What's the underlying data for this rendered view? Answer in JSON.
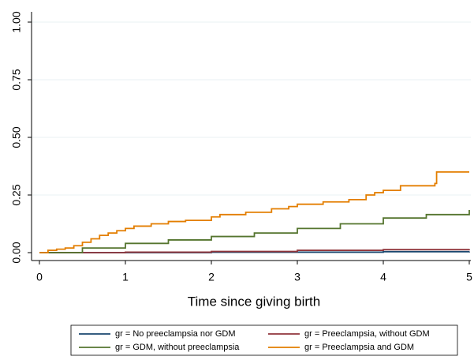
{
  "chart_data": {
    "type": "step",
    "xlabel": "Time since giving birth",
    "xlim": [
      0,
      5
    ],
    "xticks": [
      0,
      1,
      2,
      3,
      4,
      5
    ],
    "ylim": [
      0,
      1
    ],
    "yticks": [
      {
        "value": 0,
        "label": "0.00"
      },
      {
        "value": 0.25,
        "label": "0.25"
      },
      {
        "value": 0.5,
        "label": "0.50"
      },
      {
        "value": 0.75,
        "label": "0.75"
      },
      {
        "value": 1,
        "label": "1.00"
      }
    ],
    "grid": true,
    "series": [
      {
        "name": "gr = No preeclampsia nor GDM",
        "color": "#1a476f",
        "x": [
          0,
          2,
          4,
          5
        ],
        "values": [
          0,
          0.002,
          0.004,
          0.005
        ]
      },
      {
        "name": "gr = Preeclampsia, without GDM",
        "color": "#90353b",
        "x": [
          0,
          1,
          2,
          3,
          4,
          5
        ],
        "values": [
          0,
          0.002,
          0.005,
          0.01,
          0.013,
          0.015
        ]
      },
      {
        "name": "gr = GDM, without preeclampsia",
        "color": "#55752f",
        "x": [
          0,
          0.5,
          1,
          1.5,
          2,
          2.5,
          3,
          3.5,
          4,
          4.5,
          5
        ],
        "values": [
          0,
          0.02,
          0.04,
          0.055,
          0.07,
          0.085,
          0.105,
          0.125,
          0.15,
          0.165,
          0.185
        ]
      },
      {
        "name": "gr = Preeclampsia and GDM",
        "color": "#e37e00",
        "x": [
          0,
          0.1,
          0.2,
          0.3,
          0.4,
          0.5,
          0.6,
          0.7,
          0.8,
          0.9,
          1.0,
          1.1,
          1.3,
          1.5,
          1.7,
          2.0,
          2.1,
          2.4,
          2.7,
          2.9,
          3.0,
          3.3,
          3.6,
          3.8,
          3.9,
          4.0,
          4.2,
          4.6,
          4.62,
          5.0
        ],
        "values": [
          0,
          0.01,
          0.015,
          0.02,
          0.03,
          0.045,
          0.06,
          0.075,
          0.085,
          0.095,
          0.105,
          0.115,
          0.125,
          0.135,
          0.14,
          0.155,
          0.165,
          0.175,
          0.19,
          0.2,
          0.21,
          0.22,
          0.23,
          0.25,
          0.26,
          0.27,
          0.29,
          0.3,
          0.35,
          0.35
        ]
      }
    ]
  }
}
